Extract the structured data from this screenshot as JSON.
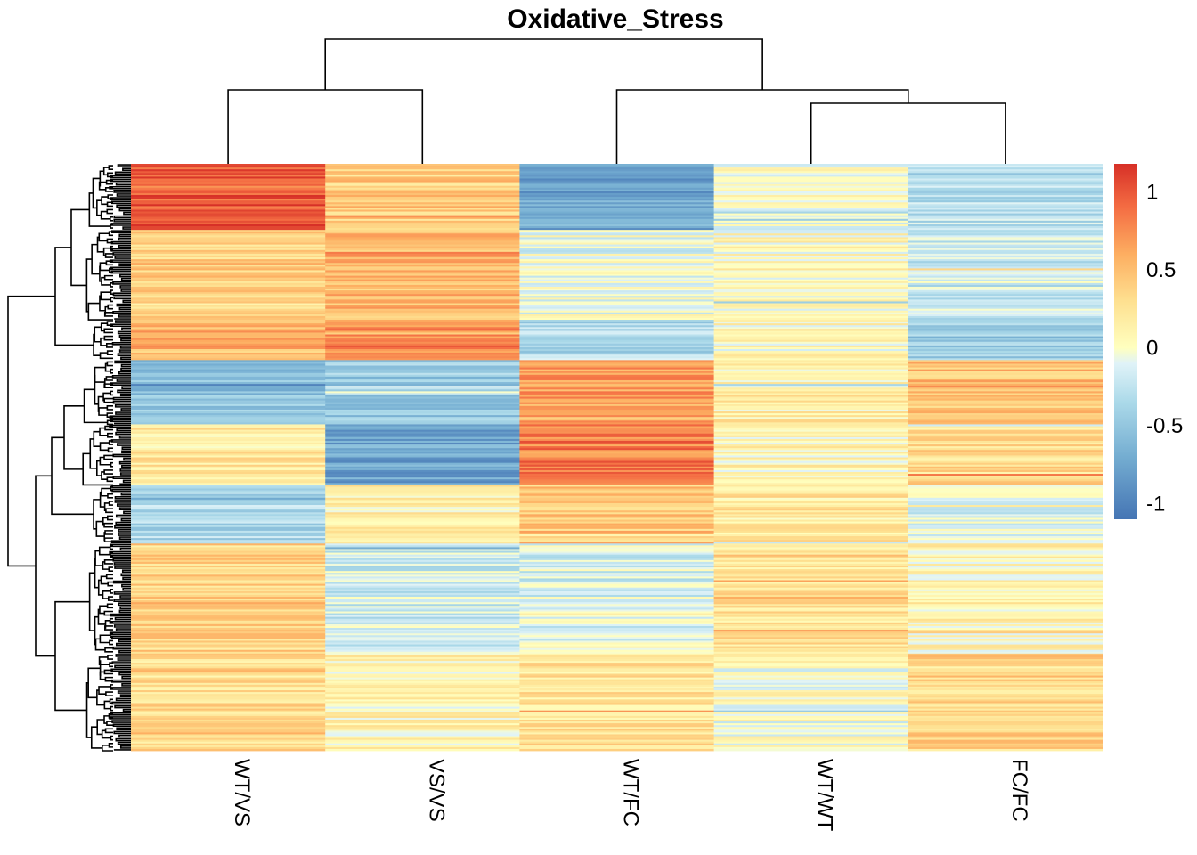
{
  "chart_data": {
    "type": "heatmap",
    "title": "Oxidative_Stress",
    "columns": [
      "WT/VS",
      "VS/VS",
      "WT/FC",
      "WT/WT",
      "FC/FC"
    ],
    "row_count": 320,
    "color_scale": {
      "low": "#4575b4",
      "mid": "#ffffbf",
      "high": "#d73027",
      "range": [
        -1.1,
        1.18
      ],
      "stops": [
        {
          "value": -1.1,
          "color": "#4575b4"
        },
        {
          "value": -0.7,
          "color": "#74add1"
        },
        {
          "value": -0.35,
          "color": "#abd9e9"
        },
        {
          "value": -0.1,
          "color": "#e0f3f8"
        },
        {
          "value": 0,
          "color": "#ffffbf"
        },
        {
          "value": 0.3,
          "color": "#fee090"
        },
        {
          "value": 0.6,
          "color": "#fdae61"
        },
        {
          "value": 0.9,
          "color": "#f46d43"
        },
        {
          "value": 1.18,
          "color": "#d73027"
        }
      ]
    },
    "legend": {
      "position": "right",
      "ticks": [
        {
          "value": 1,
          "label": "1"
        },
        {
          "value": 0.5,
          "label": "0.5"
        },
        {
          "value": 0,
          "label": "0"
        },
        {
          "value": -0.5,
          "label": "-0.5"
        },
        {
          "value": -1,
          "label": "-1"
        }
      ]
    },
    "column_dendrogram": "((WT/VS,VS/VS),(WT/FC,(WT/WT,FC/FC)))",
    "row_dendrogram": true,
    "row_clusters": [
      {
        "rows": 36,
        "values": [
          1.0,
          0.4,
          -0.75,
          -0.05,
          -0.3
        ]
      },
      {
        "rows": 49,
        "values": [
          0.4,
          0.55,
          -0.05,
          0.05,
          -0.2
        ]
      },
      {
        "rows": 22,
        "values": [
          0.55,
          0.8,
          -0.35,
          0.05,
          -0.45
        ]
      },
      {
        "rows": 35,
        "values": [
          -0.5,
          -0.45,
          0.65,
          0.15,
          0.5
        ]
      },
      {
        "rows": 33,
        "values": [
          0.2,
          -0.75,
          0.8,
          0.1,
          0.3
        ]
      },
      {
        "rows": 32,
        "values": [
          -0.35,
          0.15,
          0.45,
          0.2,
          -0.1
        ]
      },
      {
        "rows": 60,
        "values": [
          0.35,
          -0.2,
          -0.15,
          0.25,
          0.1
        ]
      },
      {
        "rows": 53,
        "values": [
          0.3,
          0.1,
          0.25,
          0.0,
          0.35
        ]
      }
    ]
  }
}
